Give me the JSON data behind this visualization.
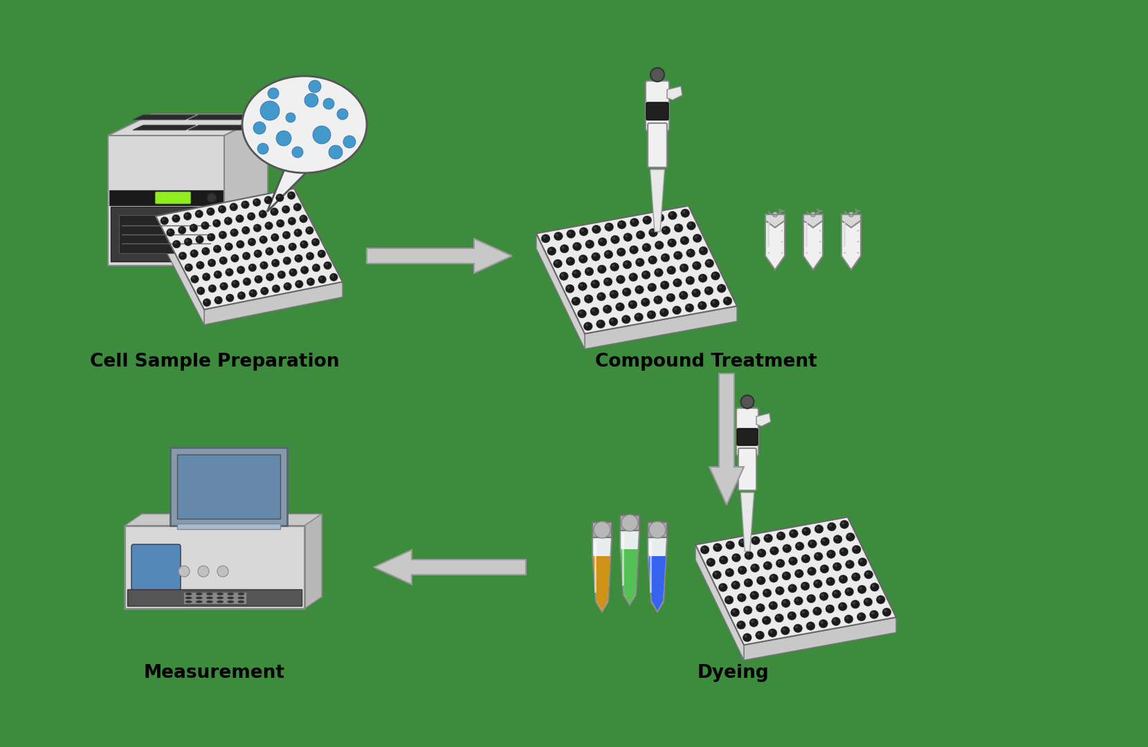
{
  "background_color": "#3d8b3d",
  "labels": {
    "cell_sample": "Cell Sample Preparation",
    "compound": "Compound Treatment",
    "dyeing": "Dyeing",
    "measurement": "Measurement"
  },
  "label_fontsize": 19,
  "label_fontweight": "bold",
  "arrow_color": "#b0b0b0",
  "colors": {
    "plate_top": "#e8e8e8",
    "plate_side_left": "#c0c0c0",
    "plate_side_right": "#d0d0d0",
    "plate_edge": "#888888",
    "well_dark": "#1a1a1a",
    "well_edge": "#444444",
    "incubator_body": "#d8d8d8",
    "incubator_side": "#b8b8b8",
    "incubator_top_panel": "#333333",
    "incubator_door": "#404040",
    "incubator_window": "#303030",
    "incubator_led": "#90ee20",
    "bubble_bg": "#f0f0f0",
    "bubble_edge": "#555555",
    "cell_blue": "#4499cc",
    "cell_edge": "#2266aa",
    "pipette_body": "#f0f0f0",
    "pipette_black": "#202020",
    "pipette_tip_color": "#e0e0e0",
    "eppendorf_body": "#f0f0f0",
    "eppendorf_edge": "#888888",
    "eppendorf_cap": "#c8c8c8",
    "tube_amber": "#cc8800",
    "tube_green": "#44bb44",
    "tube_blue": "#2255ee",
    "reader_body": "#d8d8d8",
    "reader_lid": "#8899aa",
    "reader_screen": "#5588bb",
    "reader_dark": "#555555"
  }
}
